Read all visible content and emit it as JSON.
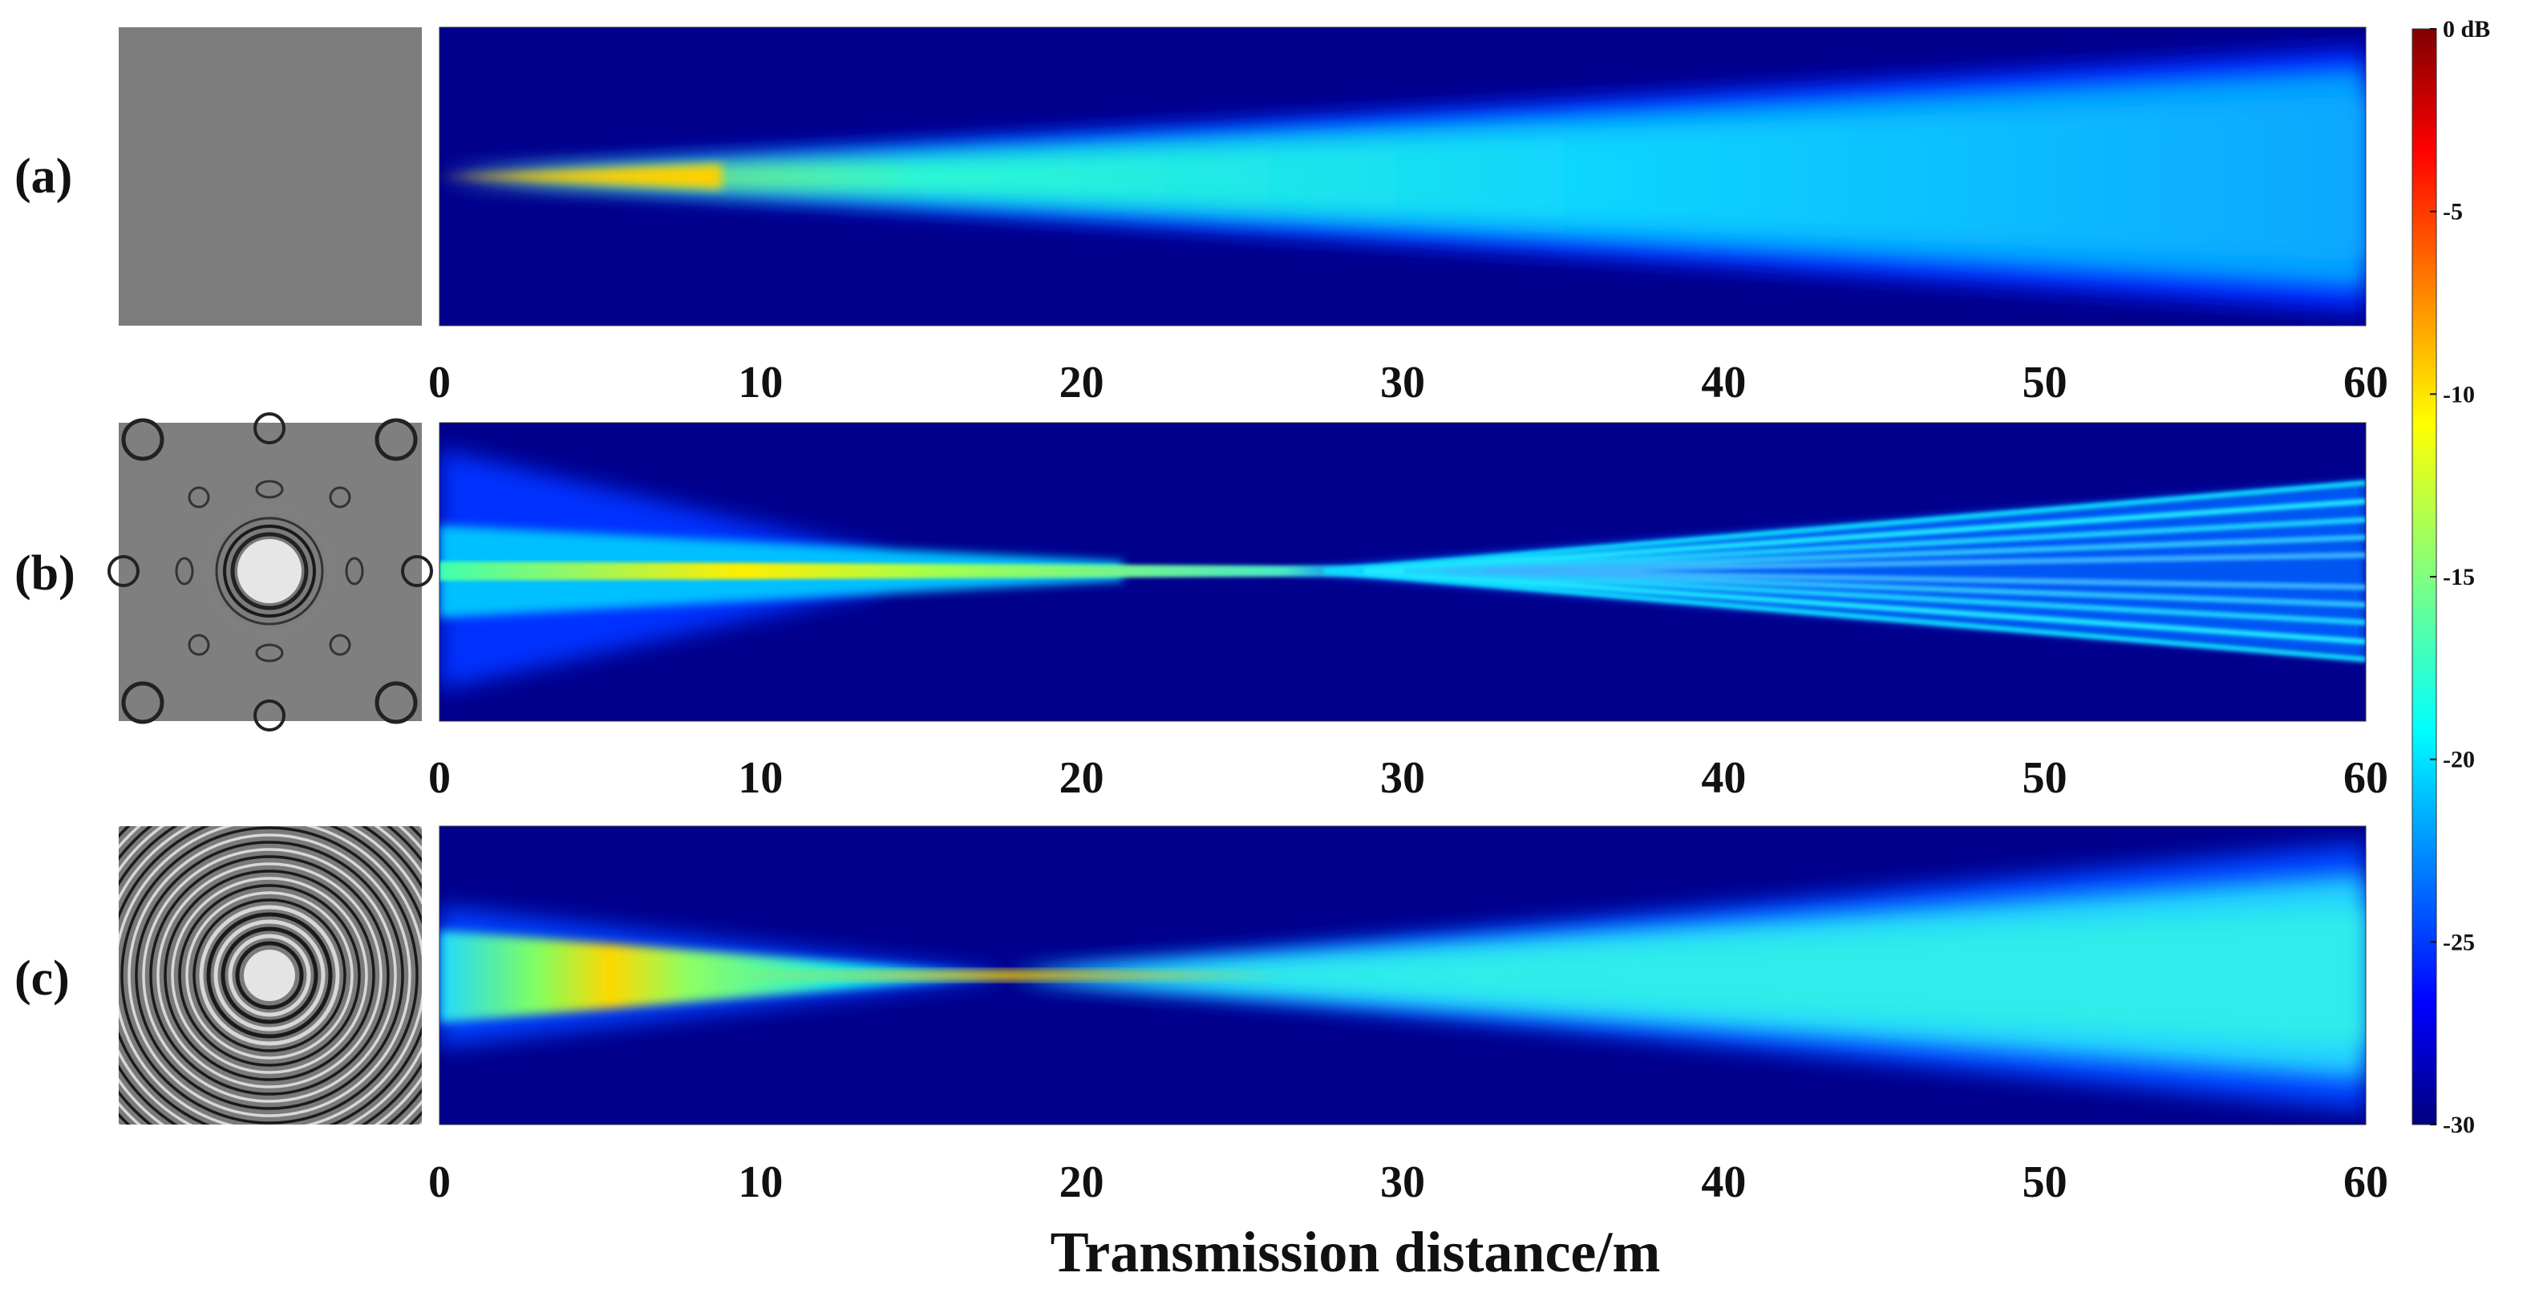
{
  "chart_data": {
    "type": "heatmap",
    "xlabel": "Transmission distance/m",
    "x_ticks": [
      "0",
      "10",
      "20",
      "30",
      "40",
      "50",
      "60"
    ],
    "xlim": [
      0,
      60
    ],
    "colorbar": {
      "colormap": "jet",
      "range": [
        -30,
        0
      ],
      "ticks": [
        "0 dB",
        "-5",
        "-10",
        "-15",
        "-20",
        "-25",
        "-30"
      ]
    },
    "panels": [
      {
        "label": "(a)",
        "phase_mask": "uniform gray",
        "beam": "diverging",
        "focus_distance": 0
      },
      {
        "label": "(b)",
        "phase_mask": "ring pattern with side lobes",
        "beam": "self-focusing crossing bands",
        "focus_distance": 32
      },
      {
        "label": "(c)",
        "phase_mask": "concentric rings",
        "beam": "focused",
        "focus_distance": 18
      }
    ]
  }
}
